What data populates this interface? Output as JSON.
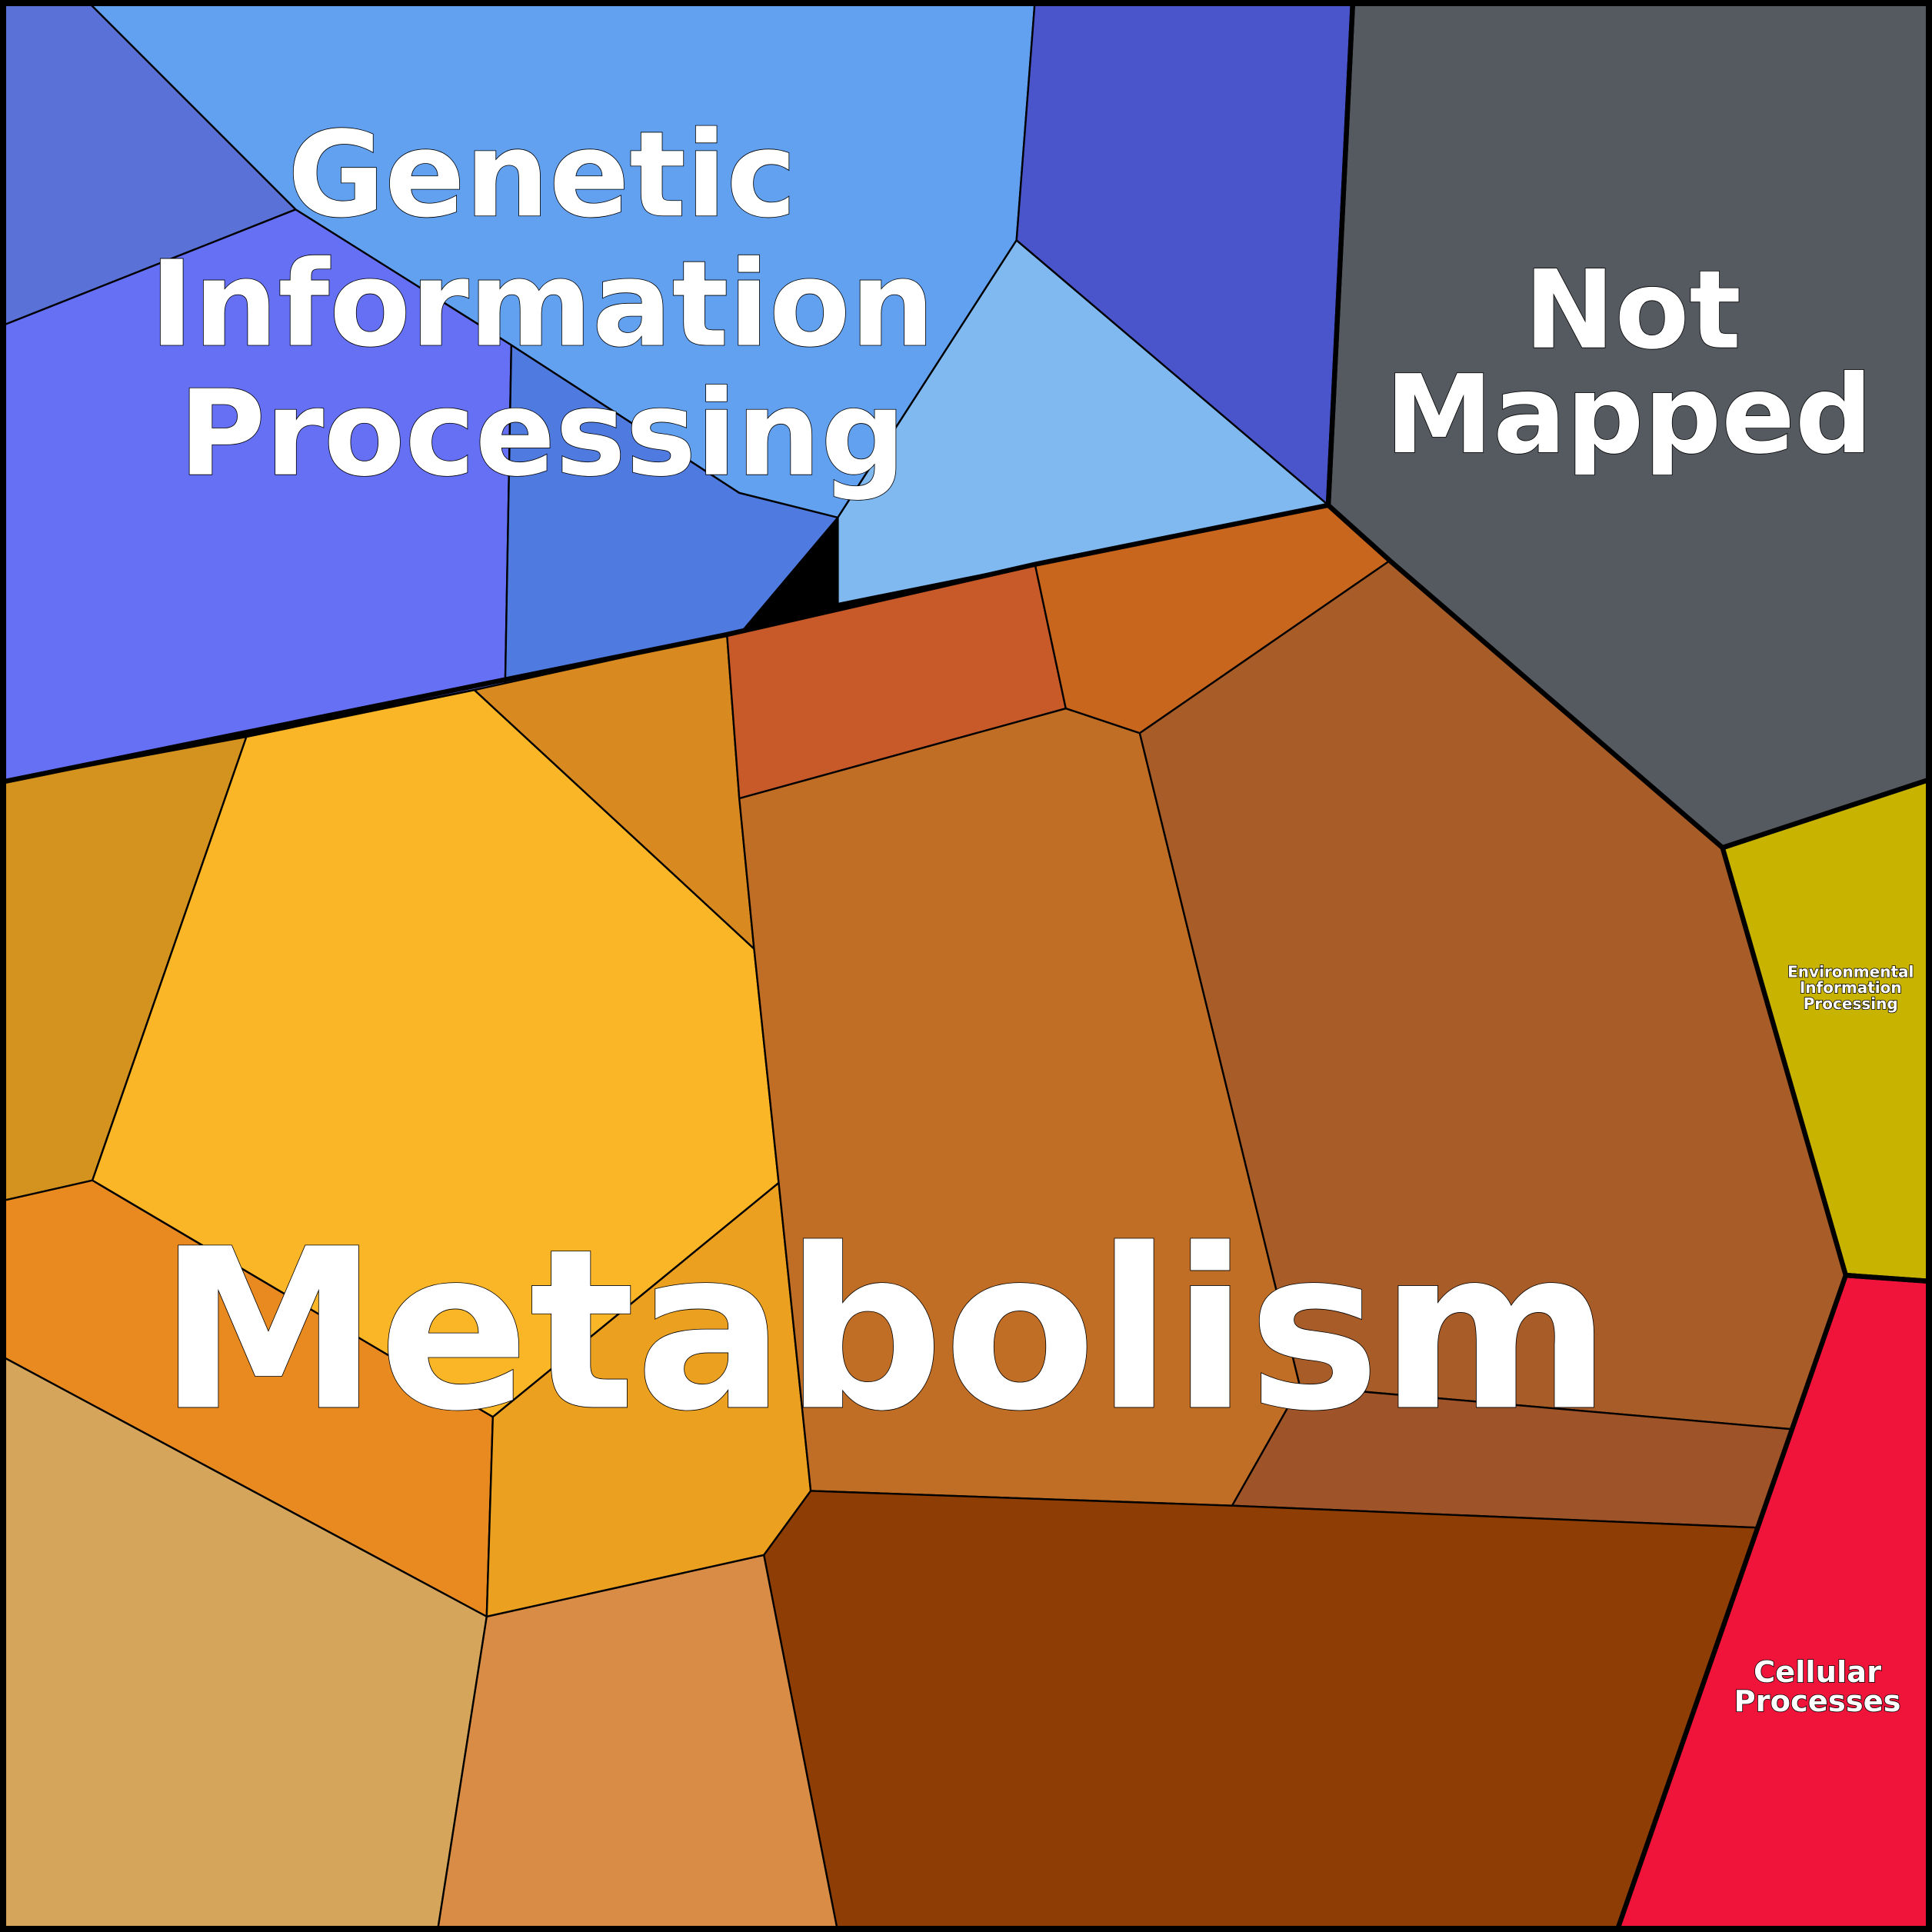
{
  "labels": {
    "genetic": [
      "Genetic",
      "Information",
      "Processing"
    ],
    "not_mapped": [
      "Not",
      "Mapped"
    ],
    "environmental": [
      "Environmental",
      "Information",
      "Processing"
    ],
    "cellular": [
      "Cellular",
      "Processes"
    ],
    "metabolism": "Metabolism"
  },
  "colors": {
    "genetic": [
      "#5a72d8",
      "#6670f5",
      "#4f7ae0",
      "#62a0f0",
      "#4a55cc",
      "#80b8f0"
    ],
    "not_mapped": "#545a60",
    "environmental": "#c8b400",
    "cellular": "#f0143a",
    "metabolism": [
      "#d4921e",
      "#fbb627",
      "#e88a20",
      "#d4a55a",
      "#d88c45",
      "#eba020",
      "#d88a20",
      "#c85a2a",
      "#c8661e",
      "#c06e25",
      "#a85c28",
      "#9e5428",
      "#8e3e05"
    ]
  }
}
